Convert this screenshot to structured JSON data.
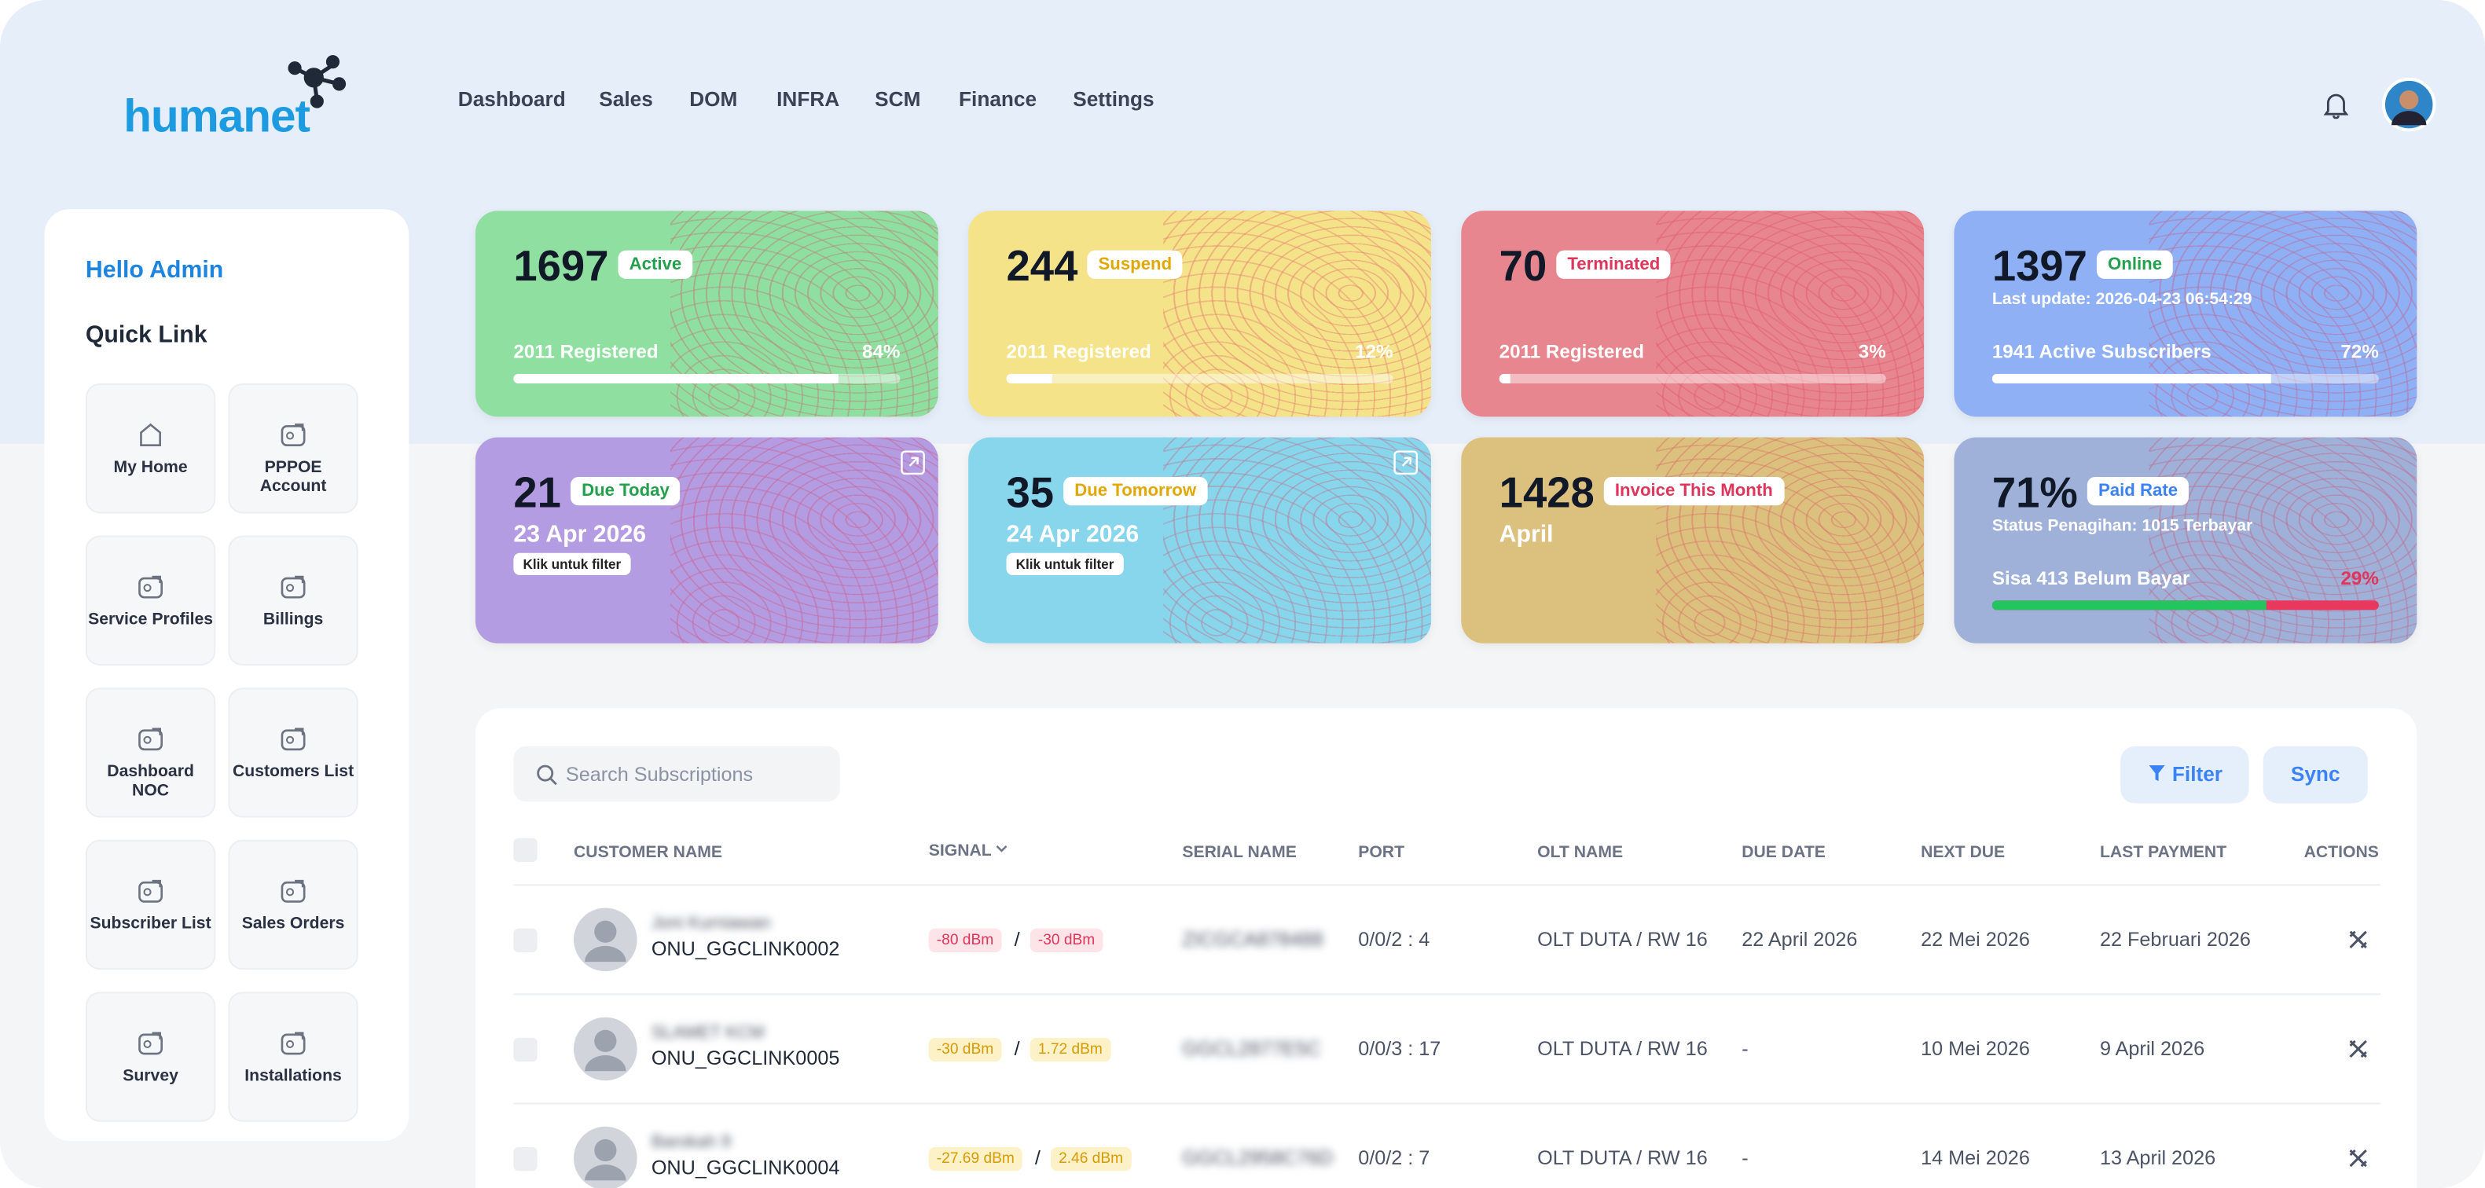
{
  "header": {
    "logo": "humanet",
    "nav": [
      "Dashboard",
      "Sales",
      "DOM",
      "INFRA",
      "SCM",
      "Finance",
      "Settings"
    ]
  },
  "sidebar": {
    "greeting": "Hello Admin",
    "title": "Quick Link",
    "links": [
      "My Home",
      "PPPOE Account",
      "Service Profiles",
      "Billings",
      "Dashboard NOC",
      "Customers List",
      "Subscriber List",
      "Sales Orders",
      "Survey",
      "Installations"
    ]
  },
  "cards": [
    {
      "value": "1697",
      "badge": "Active",
      "footer": "2011 Registered",
      "progress": 84,
      "progress_label": "84%"
    },
    {
      "value": "244",
      "badge": "Suspend",
      "footer": "2011 Registered",
      "progress": 12,
      "progress_label": "12%"
    },
    {
      "value": "70",
      "badge": "Terminated",
      "footer": "2011 Registered",
      "progress": 3,
      "progress_label": "3%"
    },
    {
      "value": "1397",
      "badge": "Online",
      "subtitle": "Last update: 2026-04-23 06:54:29",
      "footer": "1941 Active Subscribers",
      "progress": 72,
      "progress_label": "72%"
    },
    {
      "value": "21",
      "badge": "Due Today",
      "date": "23 Apr 2026",
      "chip": "Klik untuk filter"
    },
    {
      "value": "35",
      "badge": "Due Tomorrow",
      "date": "24 Apr 2026",
      "chip": "Klik untuk filter"
    },
    {
      "value": "1428",
      "badge": "Invoice This Month",
      "date": "April"
    },
    {
      "value": "71%",
      "badge": "Paid Rate",
      "subtitle": "Status Penagihan: 1015 Terbayar",
      "footer": "Sisa 413 Belum Bayar",
      "progress": 71,
      "progress_label": "29%"
    }
  ],
  "table": {
    "search": "Search Subscriptions",
    "buttons": [
      "Filter",
      "Sync"
    ],
    "columns": [
      "CUSTOMER NAME",
      "SIGNAL",
      "SERIAL NAME",
      "PORT",
      "OLT NAME",
      "DUE DATE",
      "NEXT DUE",
      "LAST PAYMENT",
      "ACTIONS"
    ],
    "rows": [
      [
        "Joni Kurniawan",
        "ONU_GGCLINK0002",
        "-80 dBm",
        "-30 dBm",
        "ZICGCA878488",
        "0/0/2 : 4",
        "OLT DUTA / RW 16",
        "22 April 2026",
        "22 Mei 2026",
        "22 Februari 2026"
      ],
      [
        "SLAMET KCM",
        "ONU_GGCLINK0005",
        "-30 dBm",
        "1.72 dBm",
        "GGCL2877E5C",
        "0/0/3 : 17",
        "OLT DUTA / RW 16",
        "-",
        "10 Mei 2026",
        "9 April 2026"
      ],
      [
        "Barokah 9",
        "ONU_GGCLINK0004",
        "-27.69 dBm",
        "2.46 dBm",
        "GGCL2958C76D",
        "0/0/2 : 7",
        "OLT DUTA / RW 16",
        "-",
        "14 Mei 2026",
        "13 April 2026"
      ]
    ]
  }
}
